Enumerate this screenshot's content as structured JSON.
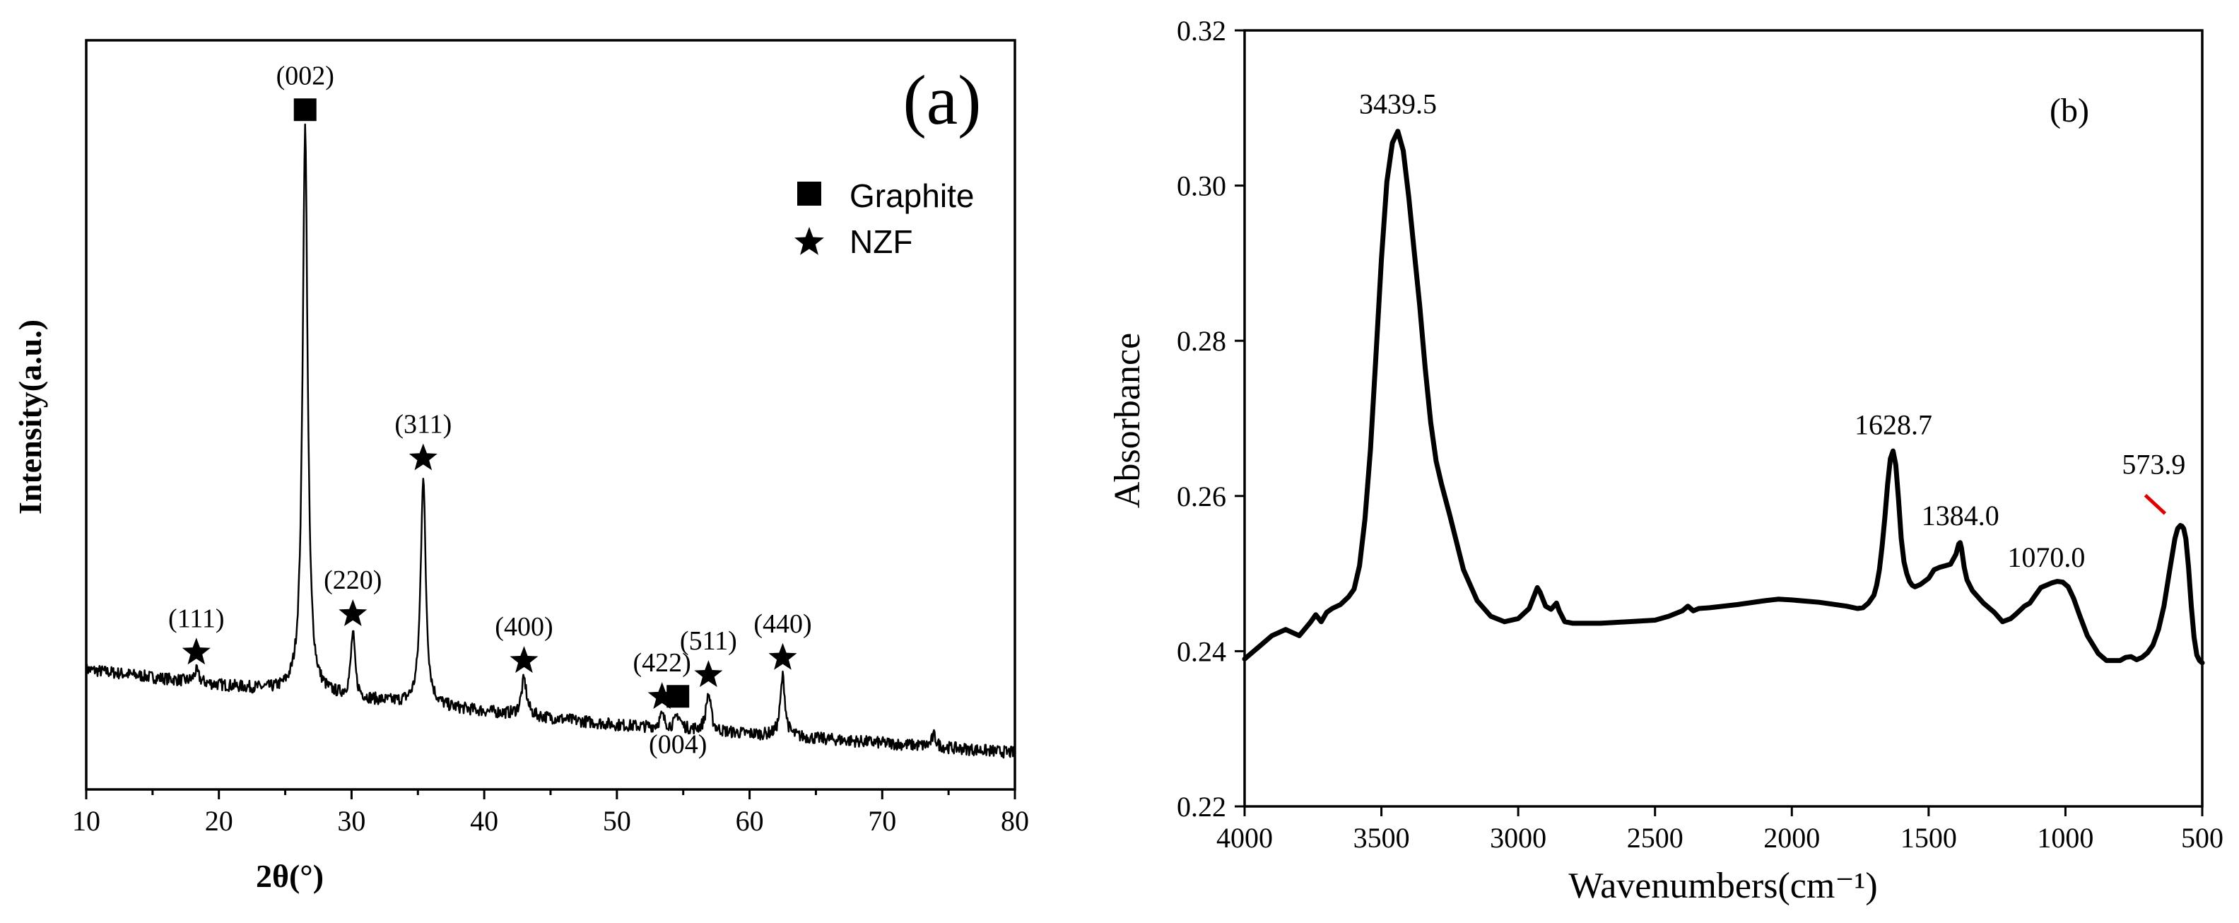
{
  "colors": {
    "ink": "#000000",
    "accent": "#e00000",
    "background": "#ffffff"
  },
  "chart_data": [
    {
      "id": "xrd",
      "type": "line",
      "panel_label": "(a)",
      "xlabel": "2θ(°)",
      "ylabel": "Intensity(a.u.)",
      "xlim": [
        10,
        80
      ],
      "ylim": [
        0,
        100
      ],
      "xticks": [
        10,
        20,
        30,
        40,
        50,
        60,
        70,
        80
      ],
      "yticks_shown": false,
      "grid": false,
      "legend": {
        "placement": "top-right",
        "entries": [
          {
            "label": "Graphite",
            "marker": "square"
          },
          {
            "label": "NZF",
            "marker": "star"
          }
        ]
      },
      "baseline": [
        [
          10,
          16.0
        ],
        [
          20,
          13.9
        ],
        [
          30,
          12.1
        ],
        [
          40,
          10.4
        ],
        [
          50,
          8.6
        ],
        [
          60,
          7.4
        ],
        [
          70,
          6.2
        ],
        [
          80,
          4.9
        ]
      ],
      "peaks": [
        {
          "x": 18.3,
          "height": 1.5,
          "width": 0.22
        },
        {
          "x": 26.5,
          "height": 75.5,
          "width": 0.23
        },
        {
          "x": 30.1,
          "height": 8.5,
          "width": 0.19
        },
        {
          "x": 35.4,
          "height": 30.5,
          "width": 0.23
        },
        {
          "x": 43.0,
          "height": 4.8,
          "width": 0.24
        },
        {
          "x": 53.4,
          "height": 1.6,
          "width": 0.24
        },
        {
          "x": 54.6,
          "height": 1.8,
          "width": 0.24
        },
        {
          "x": 56.9,
          "height": 5.0,
          "width": 0.22
        },
        {
          "x": 62.5,
          "height": 8.0,
          "width": 0.21
        },
        {
          "x": 73.9,
          "height": 1.5,
          "width": 0.2
        }
      ],
      "annotations": [
        {
          "label": "(111)",
          "x": 18.3,
          "marker": "star"
        },
        {
          "label": "(002)",
          "x": 26.5,
          "marker": "square"
        },
        {
          "label": "(220)",
          "x": 30.1,
          "marker": "star"
        },
        {
          "label": "(311)",
          "x": 35.4,
          "marker": "star"
        },
        {
          "label": "(400)",
          "x": 43.0,
          "marker": "star"
        },
        {
          "label": "(422)",
          "x": 53.4,
          "marker": "star"
        },
        {
          "label": "(004)",
          "x": 54.6,
          "marker": "square",
          "label_below": true
        },
        {
          "label": "(511)",
          "x": 56.9,
          "marker": "star"
        },
        {
          "label": "(440)",
          "x": 62.5,
          "marker": "star"
        }
      ]
    },
    {
      "id": "ftir",
      "type": "line",
      "panel_label": "(b)",
      "xlabel": "Wavenumbers(cm⁻¹)",
      "ylabel": "Absorbance",
      "xlim": [
        4000,
        500
      ],
      "ylim": [
        0.22,
        0.32
      ],
      "xticks": [
        4000,
        3500,
        3000,
        2500,
        2000,
        1500,
        1000,
        500
      ],
      "yticks": [
        0.22,
        0.24,
        0.26,
        0.28,
        0.3,
        0.32
      ],
      "grid": false,
      "series": [
        {
          "name": "Absorbance",
          "x": [
            4000,
            3950,
            3900,
            3850,
            3800,
            3760,
            3740,
            3720,
            3700,
            3680,
            3650,
            3620,
            3600,
            3580,
            3560,
            3540,
            3520,
            3500,
            3480,
            3460,
            3440,
            3420,
            3400,
            3380,
            3360,
            3340,
            3320,
            3300,
            3280,
            3250,
            3200,
            3150,
            3100,
            3050,
            3000,
            2960,
            2930,
            2920,
            2900,
            2880,
            2860,
            2850,
            2830,
            2800,
            2700,
            2600,
            2500,
            2450,
            2400,
            2380,
            2360,
            2340,
            2300,
            2200,
            2100,
            2050,
            2000,
            1900,
            1800,
            1760,
            1740,
            1720,
            1700,
            1690,
            1680,
            1670,
            1660,
            1650,
            1640,
            1630,
            1620,
            1610,
            1600,
            1590,
            1580,
            1570,
            1560,
            1550,
            1530,
            1500,
            1480,
            1460,
            1440,
            1420,
            1400,
            1390,
            1385,
            1380,
            1370,
            1360,
            1340,
            1300,
            1260,
            1230,
            1200,
            1180,
            1150,
            1130,
            1110,
            1090,
            1070,
            1050,
            1030,
            1010,
            990,
            970,
            950,
            920,
            880,
            850,
            800,
            780,
            760,
            740,
            720,
            700,
            680,
            660,
            640,
            620,
            600,
            590,
            580,
            574,
            568,
            560,
            550,
            540,
            530,
            520,
            510,
            500
          ],
          "y": [
            0.239,
            0.2405,
            0.242,
            0.2428,
            0.242,
            0.2437,
            0.2447,
            0.2438,
            0.245,
            0.2455,
            0.246,
            0.247,
            0.248,
            0.251,
            0.257,
            0.266,
            0.278,
            0.2905,
            0.3005,
            0.3055,
            0.307,
            0.3045,
            0.2985,
            0.2915,
            0.2845,
            0.2765,
            0.2695,
            0.2645,
            0.2615,
            0.2575,
            0.2505,
            0.2465,
            0.2445,
            0.2438,
            0.2442,
            0.2455,
            0.2482,
            0.2476,
            0.2458,
            0.2454,
            0.2462,
            0.2452,
            0.2438,
            0.2436,
            0.2436,
            0.2438,
            0.244,
            0.2445,
            0.2452,
            0.2458,
            0.2452,
            0.2455,
            0.2456,
            0.246,
            0.2465,
            0.2467,
            0.2466,
            0.2463,
            0.2458,
            0.2455,
            0.2456,
            0.2462,
            0.2472,
            0.2485,
            0.2505,
            0.2535,
            0.2572,
            0.2615,
            0.2648,
            0.2658,
            0.264,
            0.2595,
            0.2545,
            0.2515,
            0.25,
            0.249,
            0.2485,
            0.2483,
            0.2486,
            0.2494,
            0.2505,
            0.2508,
            0.251,
            0.2512,
            0.2525,
            0.2538,
            0.254,
            0.2533,
            0.2508,
            0.2492,
            0.2478,
            0.2462,
            0.245,
            0.2438,
            0.2442,
            0.2448,
            0.2458,
            0.2462,
            0.2472,
            0.2482,
            0.2485,
            0.2488,
            0.249,
            0.2489,
            0.2483,
            0.2468,
            0.2448,
            0.242,
            0.2397,
            0.2388,
            0.2388,
            0.2392,
            0.2393,
            0.2389,
            0.2392,
            0.2398,
            0.2408,
            0.2428,
            0.2458,
            0.2502,
            0.2545,
            0.2558,
            0.2562,
            0.2561,
            0.2558,
            0.2545,
            0.2508,
            0.2458,
            0.2418,
            0.2395,
            0.2388,
            0.2385
          ]
        }
      ],
      "annotations": [
        {
          "label": "3439.5",
          "x": 3439.5
        },
        {
          "label": "1628.7",
          "x": 1628.7
        },
        {
          "label": "1384.0",
          "x": 1384.0
        },
        {
          "label": "1070.0",
          "x": 1070.0
        },
        {
          "label": "573.9",
          "x": 573.9,
          "leader": true
        }
      ]
    }
  ]
}
